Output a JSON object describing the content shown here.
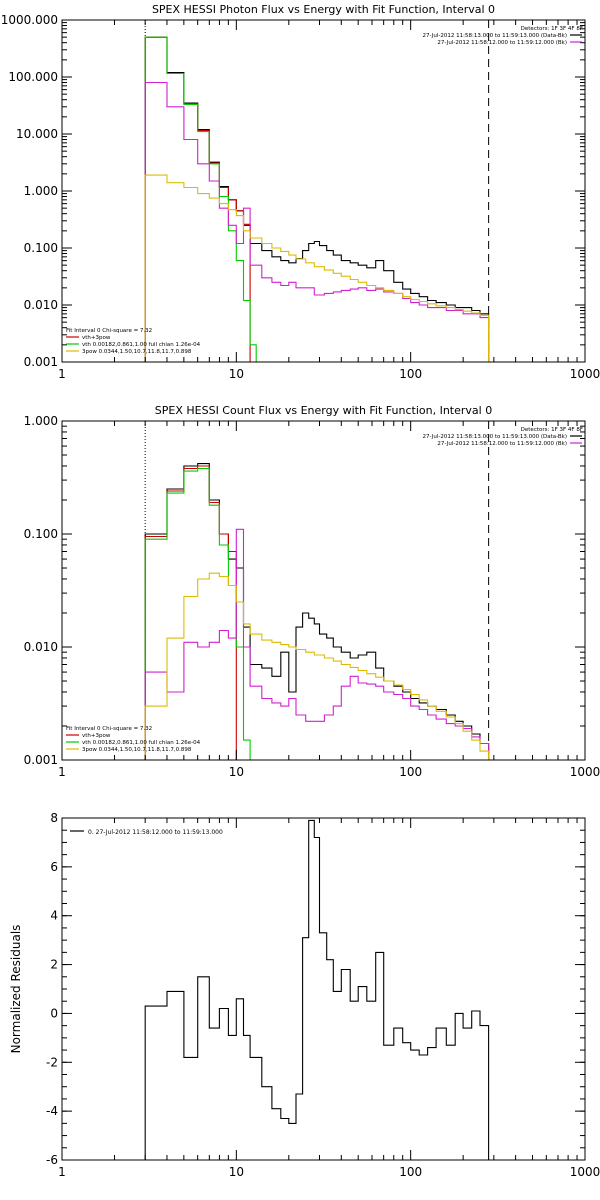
{
  "chart_data": [
    {
      "type": "line",
      "title": "SPEX HESSI Photon Flux vs Energy with Fit Function, Interval 0",
      "xscale": "log",
      "yscale": "log",
      "xlim": [
        1,
        1000
      ],
      "ylim": [
        0.001,
        1000
      ],
      "xticks": [
        {
          "v": 1,
          "label": "1"
        },
        {
          "v": 10,
          "label": "10"
        },
        {
          "v": 100,
          "label": "100"
        },
        {
          "v": 1000,
          "label": "1000"
        }
      ],
      "yticks": [
        {
          "v": 0.001,
          "label": "0.001"
        },
        {
          "v": 0.01,
          "label": "0.010"
        },
        {
          "v": 0.1,
          "label": "0.100"
        },
        {
          "v": 1,
          "label": "1.000"
        },
        {
          "v": 10,
          "label": "10.000"
        },
        {
          "v": 100,
          "label": "100.000"
        },
        {
          "v": 1000,
          "label": "1000.000"
        }
      ],
      "legend_top": [
        {
          "text": "Detectors: 1F 3F 4F 8F",
          "color": ""
        },
        {
          "text": "27-Jul-2012 11:58:13.000 to 11:59:13.000 (Data-Bk)",
          "color": "#000000"
        },
        {
          "text": "27-Jul-2012 11:58:12.000 to 11:59:12.000 (Bk)",
          "color": "#d020d0"
        }
      ],
      "legend_bottom": [
        {
          "text": "Fit Interval 0   Chi-square = 7.32",
          "color": ""
        },
        {
          "text": "vth+3pow",
          "color": "#cc0000"
        },
        {
          "text": "vth 0.00182,0.861,1.00   full chian 1.26e-04",
          "color": "#00cc00"
        },
        {
          "text": "3pow 0.0344,1.50,10.7,11.8,11.7,0.898",
          "color": "#ddbb00"
        }
      ],
      "vlines": [
        {
          "x": 3,
          "style": "dotted"
        },
        {
          "x": 280,
          "style": "dashed"
        }
      ],
      "series": [
        {
          "color": "#000000",
          "edges": [
            3,
            4,
            5,
            6,
            7,
            8,
            9,
            10,
            11,
            12,
            14,
            16,
            18,
            20,
            22,
            24,
            26,
            28,
            30,
            33,
            36,
            40,
            45,
            50,
            56,
            63,
            70,
            80,
            90,
            100,
            112,
            125,
            140,
            160,
            180,
            200,
            224,
            250,
            280
          ],
          "values": [
            500,
            120,
            35,
            12,
            3.2,
            1.2,
            0.7,
            0.45,
            0.25,
            0.12,
            0.09,
            0.07,
            0.06,
            0.055,
            0.065,
            0.09,
            0.12,
            0.13,
            0.11,
            0.09,
            0.075,
            0.06,
            0.055,
            0.05,
            0.045,
            0.06,
            0.04,
            0.025,
            0.019,
            0.016,
            0.014,
            0.012,
            0.011,
            0.01,
            0.009,
            0.009,
            0.008,
            0.007
          ]
        },
        {
          "color": "#cc0000",
          "edges": [
            3,
            4,
            5,
            6,
            7,
            8,
            9,
            10,
            11,
            12
          ],
          "values": [
            500,
            115,
            34,
            11.5,
            3.1,
            1.15,
            0.7,
            0.45,
            0.26
          ]
        },
        {
          "color": "#00cc00",
          "edges": [
            3,
            4,
            5,
            6,
            7,
            8,
            9,
            10,
            11,
            12,
            13
          ],
          "values": [
            500,
            115,
            33,
            11,
            3.0,
            0.8,
            0.2,
            0.06,
            0.012,
            0.002
          ]
        },
        {
          "color": "#d020d0",
          "edges": [
            3,
            4,
            5,
            6,
            7,
            8,
            9,
            10,
            11,
            12,
            14,
            16,
            18,
            20,
            22,
            25,
            28,
            32,
            36,
            40,
            45,
            50,
            56,
            63,
            70,
            80,
            90,
            100,
            112,
            125,
            140,
            160,
            180,
            200,
            224,
            250,
            280
          ],
          "values": [
            80,
            30,
            8,
            3,
            1.5,
            0.5,
            0.25,
            0.12,
            0.5,
            0.05,
            0.03,
            0.025,
            0.022,
            0.025,
            0.02,
            0.02,
            0.015,
            0.016,
            0.017,
            0.018,
            0.019,
            0.02,
            0.018,
            0.019,
            0.017,
            0.016,
            0.013,
            0.011,
            0.01,
            0.009,
            0.009,
            0.008,
            0.008,
            0.007,
            0.007,
            0.006
          ]
        },
        {
          "color": "#ddbb00",
          "edges": [
            3,
            4,
            5,
            6,
            7,
            8,
            9,
            10,
            11,
            12,
            14,
            16,
            18,
            20,
            22,
            25,
            28,
            32,
            36,
            40,
            45,
            50,
            56,
            63,
            70,
            80,
            90,
            100,
            112,
            125,
            140,
            160,
            180,
            200,
            224,
            250,
            280
          ],
          "values": [
            1.9,
            1.4,
            1.15,
            0.9,
            0.75,
            0.6,
            0.47,
            0.37,
            0.2,
            0.15,
            0.12,
            0.1,
            0.087,
            0.075,
            0.064,
            0.055,
            0.047,
            0.041,
            0.036,
            0.032,
            0.028,
            0.025,
            0.022,
            0.02,
            0.018,
            0.016,
            0.014,
            0.0125,
            0.0115,
            0.0105,
            0.0097,
            0.009,
            0.0083,
            0.0078,
            0.0072,
            0.0066
          ]
        }
      ]
    },
    {
      "type": "line",
      "title": "SPEX HESSI Count Flux vs Energy with Fit Function, Interval 0",
      "xscale": "log",
      "yscale": "log",
      "xlim": [
        1,
        1000
      ],
      "ylim": [
        0.001,
        1
      ],
      "xticks": [
        {
          "v": 1,
          "label": "1"
        },
        {
          "v": 10,
          "label": "10"
        },
        {
          "v": 100,
          "label": "100"
        },
        {
          "v": 1000,
          "label": "1000"
        }
      ],
      "yticks": [
        {
          "v": 0.001,
          "label": "0.001"
        },
        {
          "v": 0.01,
          "label": "0.010"
        },
        {
          "v": 0.1,
          "label": "0.100"
        },
        {
          "v": 1,
          "label": "1.000"
        }
      ],
      "legend_top": [
        {
          "text": "Detectors: 1F 3F 4F 8F",
          "color": ""
        },
        {
          "text": "27-Jul-2012 11:58:13.000 to 11:59:13.000 (Data-Bk)",
          "color": "#000000"
        },
        {
          "text": "27-Jul-2012 11:58:12.000 to 11:59:12.000 (Bk)",
          "color": "#d020d0"
        }
      ],
      "legend_bottom": [
        {
          "text": "Fit Interval 0   Chi-square = 7.32",
          "color": ""
        },
        {
          "text": "vth+3pow",
          "color": "#cc0000"
        },
        {
          "text": "vth 0.00182,0.861,1.00   full chian 1.26e-04",
          "color": "#00cc00"
        },
        {
          "text": "3pow 0.0344,1.50,10.7,11.8,11.7,0.898",
          "color": "#ddbb00"
        }
      ],
      "vlines": [
        {
          "x": 3,
          "style": "dotted"
        },
        {
          "x": 280,
          "style": "dashed"
        }
      ],
      "series": [
        {
          "color": "#000000",
          "edges": [
            3,
            4,
            5,
            6,
            7,
            8,
            9,
            10,
            11,
            12,
            14,
            16,
            18,
            20,
            22,
            24,
            26,
            28,
            30,
            33,
            36,
            40,
            45,
            50,
            56,
            63,
            70,
            80,
            90,
            100,
            112,
            125,
            140,
            160,
            180,
            200,
            224,
            250,
            280
          ],
          "values": [
            0.1,
            0.25,
            0.4,
            0.42,
            0.2,
            0.1,
            0.06,
            0.05,
            0.015,
            0.007,
            0.0065,
            0.0055,
            0.009,
            0.004,
            0.015,
            0.02,
            0.018,
            0.016,
            0.013,
            0.012,
            0.01,
            0.009,
            0.008,
            0.0085,
            0.009,
            0.0065,
            0.005,
            0.0045,
            0.004,
            0.0035,
            0.0032,
            0.003,
            0.0028,
            0.0025,
            0.0022,
            0.002,
            0.0017,
            0.0014
          ]
        },
        {
          "color": "#cc0000",
          "edges": [
            3,
            4,
            5,
            6,
            7,
            8,
            9,
            10
          ],
          "values": [
            0.095,
            0.24,
            0.38,
            0.4,
            0.19,
            0.1,
            0.07
          ]
        },
        {
          "color": "#00cc00",
          "edges": [
            3,
            4,
            5,
            6,
            7,
            8,
            9,
            10,
            11,
            12
          ],
          "values": [
            0.09,
            0.23,
            0.36,
            0.38,
            0.18,
            0.08,
            0.035,
            0.01,
            0.0015
          ]
        },
        {
          "color": "#d020d0",
          "edges": [
            3,
            4,
            5,
            6,
            7,
            8,
            9,
            10,
            11,
            12,
            14,
            16,
            18,
            20,
            22,
            25,
            28,
            32,
            36,
            40,
            45,
            50,
            56,
            63,
            70,
            80,
            90,
            100,
            112,
            125,
            140,
            160,
            180,
            200,
            224,
            250,
            280
          ],
          "values": [
            0.006,
            0.004,
            0.011,
            0.01,
            0.011,
            0.014,
            0.012,
            0.11,
            0.01,
            0.0045,
            0.0035,
            0.0032,
            0.003,
            0.0035,
            0.0025,
            0.0022,
            0.0022,
            0.0025,
            0.003,
            0.0045,
            0.0055,
            0.0048,
            0.0047,
            0.0045,
            0.004,
            0.0038,
            0.0035,
            0.003,
            0.0028,
            0.0025,
            0.0023,
            0.0021,
            0.002,
            0.0019,
            0.0016,
            0.0014
          ]
        },
        {
          "color": "#ddbb00",
          "edges": [
            3,
            4,
            5,
            6,
            7,
            8,
            9,
            10,
            11,
            12,
            14,
            16,
            18,
            20,
            22,
            25,
            28,
            32,
            36,
            40,
            45,
            50,
            56,
            63,
            70,
            80,
            90,
            100,
            112,
            125,
            140,
            160,
            180,
            200,
            224,
            250,
            280
          ],
          "values": [
            0.003,
            0.012,
            0.028,
            0.04,
            0.045,
            0.042,
            0.035,
            0.025,
            0.016,
            0.013,
            0.0115,
            0.011,
            0.0105,
            0.01,
            0.0095,
            0.009,
            0.0085,
            0.008,
            0.0075,
            0.007,
            0.0066,
            0.0062,
            0.0058,
            0.0054,
            0.005,
            0.0046,
            0.0042,
            0.0038,
            0.0034,
            0.003,
            0.0027,
            0.0024,
            0.0021,
            0.0018,
            0.0015,
            0.0012
          ]
        }
      ]
    },
    {
      "type": "line",
      "title": "",
      "xscale": "log",
      "yscale": "linear",
      "xlim": [
        1,
        1000
      ],
      "ylim": [
        -6,
        8
      ],
      "ylabel": "Normalized Residuals",
      "xticks": [
        {
          "v": 1,
          "label": "1"
        },
        {
          "v": 10,
          "label": "10"
        },
        {
          "v": 100,
          "label": "100"
        },
        {
          "v": 1000,
          "label": "1000"
        }
      ],
      "yticks": [
        {
          "v": -6,
          "label": "-6"
        },
        {
          "v": -4,
          "label": "-4"
        },
        {
          "v": -2,
          "label": "-2"
        },
        {
          "v": 0,
          "label": "0"
        },
        {
          "v": 2,
          "label": "2"
        },
        {
          "v": 4,
          "label": "4"
        },
        {
          "v": 6,
          "label": "6"
        },
        {
          "v": 8,
          "label": "8"
        }
      ],
      "legend_top": [
        {
          "text": "0. 27-Jul-2012 11:58:12.000 to 11:59:13.000",
          "color": "#000000"
        }
      ],
      "series": [
        {
          "color": "#000000",
          "edges": [
            3,
            4,
            5,
            6,
            7,
            8,
            9,
            10,
            11,
            12,
            14,
            16,
            18,
            20,
            22,
            24,
            26,
            28,
            30,
            33,
            36,
            40,
            45,
            50,
            56,
            63,
            70,
            80,
            90,
            100,
            112,
            125,
            140,
            160,
            180,
            200,
            224,
            250,
            280
          ],
          "values": [
            0.3,
            0.9,
            -1.8,
            1.5,
            -0.6,
            0.2,
            -0.9,
            0.6,
            -0.9,
            -1.8,
            -3.0,
            -3.9,
            -4.3,
            -4.5,
            -3.3,
            3.1,
            7.9,
            7.2,
            3.3,
            2.2,
            0.9,
            1.8,
            0.5,
            1.1,
            0.5,
            2.5,
            -1.3,
            -0.6,
            -1.2,
            -1.5,
            -1.7,
            -1.4,
            -0.6,
            -1.3,
            0.0,
            -0.6,
            0.1,
            -0.5
          ]
        }
      ]
    }
  ]
}
